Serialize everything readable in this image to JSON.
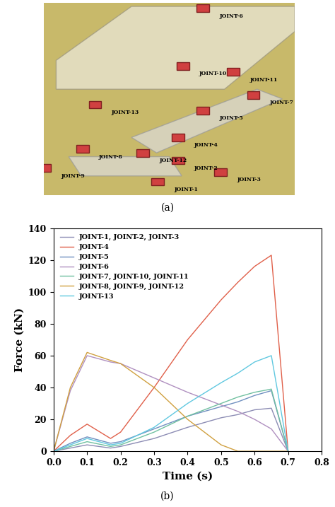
{
  "captions": [
    "(a)",
    "(b)"
  ],
  "diagram": {
    "labels": [
      "JOINT-6",
      "JOINT-10",
      "JOINT-11",
      "JOINT-7",
      "JOINT-5",
      "JOINT-13",
      "JOINT-4",
      "JOINT-12",
      "JOINT-8",
      "JOINT-9",
      "JOINT-2",
      "JOINT-3",
      "JOINT-1"
    ]
  },
  "chart_data": {
    "type": "line",
    "x_label": "Time (s)",
    "y_label": "Force (kN)",
    "x": [
      0.0,
      0.05,
      0.1,
      0.17,
      0.2,
      0.3,
      0.4,
      0.5,
      0.55,
      0.6,
      0.65,
      0.7
    ],
    "series": [
      {
        "name": "JOINT-1, JOINT-2, JOINT-3",
        "color": "#8c8cb4",
        "values": [
          0,
          2,
          4,
          2,
          3,
          8,
          15,
          21,
          23,
          26,
          27,
          0
        ]
      },
      {
        "name": "JOINT-4",
        "color": "#e0604a",
        "values": [
          0,
          10,
          17,
          8,
          12,
          40,
          70,
          95,
          106,
          116,
          123,
          0
        ]
      },
      {
        "name": "JOINT-5",
        "color": "#7090c0",
        "values": [
          0,
          5,
          9,
          5,
          6,
          14,
          22,
          28,
          31,
          35,
          38,
          0
        ]
      },
      {
        "name": "JOINT-6",
        "color": "#b090c0",
        "values": [
          0,
          38,
          60,
          56,
          55,
          46,
          37,
          29,
          25,
          20,
          14,
          0
        ]
      },
      {
        "name": "JOINT-7, JOINT-10, JOINT-11",
        "color": "#70c0a0",
        "values": [
          0,
          3,
          6,
          3,
          4,
          12,
          22,
          30,
          34,
          37,
          39,
          0
        ]
      },
      {
        "name": "JOINT-8, JOINT-9, JOINT-12",
        "color": "#d0a040",
        "values": [
          0,
          40,
          62,
          57,
          55,
          40,
          20,
          4,
          0,
          0,
          0,
          0
        ]
      },
      {
        "name": "JOINT-13",
        "color": "#60c8e0",
        "values": [
          0,
          4,
          8,
          4,
          5,
          15,
          30,
          43,
          49,
          56,
          60,
          0
        ]
      }
    ],
    "xlim": [
      0.0,
      0.8
    ],
    "xticks": [
      0.0,
      0.1,
      0.2,
      0.3,
      0.4,
      0.5,
      0.6,
      0.7,
      0.8
    ],
    "ylim": [
      0,
      140
    ],
    "yticks": [
      0,
      20,
      40,
      60,
      80,
      100,
      120,
      140
    ],
    "legend": "upper left",
    "grid": false
  }
}
